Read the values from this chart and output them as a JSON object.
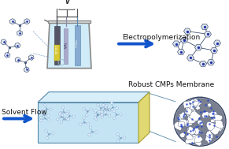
{
  "bg_color": "#ffffff",
  "electropolym_label": "Electropolymerization",
  "solvent_label": "Solvent Flow",
  "membrane_label": "Robust CMPs Membrane",
  "arrow_color": "#1155cc",
  "beaker_water_color": "#d0ecf8",
  "beaker_outline_color": "#777777",
  "label_fontsize": 6.5,
  "mol_color": "#445577",
  "mol_ring_color": "#ccd5e0",
  "mol_n_color": "#2233aa"
}
